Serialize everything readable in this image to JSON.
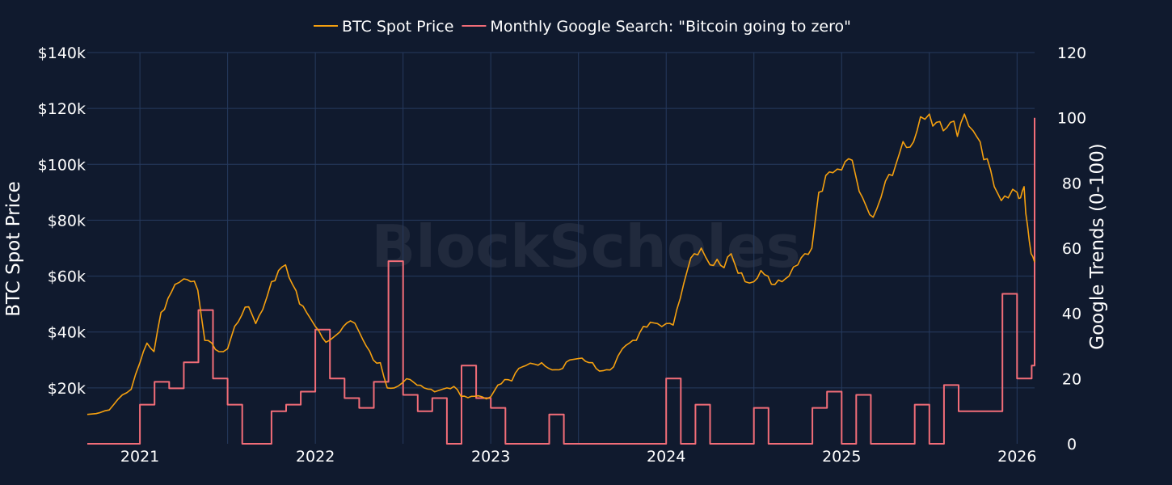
{
  "watermark": "BlockScholes",
  "chart_data": {
    "type": "line",
    "legend_position": "top-center",
    "grid": true,
    "x_axis": {
      "range": [
        2020.7,
        2026.1
      ],
      "ticks": [
        2021,
        2022,
        2023,
        2024,
        2025,
        2026
      ],
      "tick_labels": [
        "2021",
        "2022",
        "2023",
        "2024",
        "2025",
        "2026"
      ]
    },
    "y_left": {
      "title": "BTC Spot Price",
      "range": [
        0,
        140000
      ],
      "ticks": [
        20000,
        40000,
        60000,
        80000,
        100000,
        120000,
        140000
      ],
      "tick_labels": [
        "$20k",
        "$40k",
        "$60k",
        "$80k",
        "$100k",
        "$120k",
        "$140k"
      ]
    },
    "y_right": {
      "title": "Google Trends (0-100)",
      "range": [
        0,
        120
      ],
      "ticks": [
        0,
        20,
        40,
        60,
        80,
        100,
        120
      ],
      "tick_labels": [
        "0",
        "20",
        "40",
        "60",
        "80",
        "100",
        "120"
      ]
    },
    "series": [
      {
        "name": "BTC Spot Price",
        "axis": "left",
        "color": "#f5a00f",
        "x": [
          2020.7,
          2020.75,
          2020.8,
          2020.85,
          2020.9,
          2020.95,
          2021.0,
          2021.04,
          2021.08,
          2021.12,
          2021.16,
          2021.2,
          2021.25,
          2021.29,
          2021.33,
          2021.37,
          2021.41,
          2021.45,
          2021.5,
          2021.54,
          2021.58,
          2021.62,
          2021.66,
          2021.7,
          2021.75,
          2021.79,
          2021.83,
          2021.87,
          2021.91,
          2021.95,
          2022.0,
          2022.04,
          2022.08,
          2022.12,
          2022.16,
          2022.2,
          2022.25,
          2022.29,
          2022.33,
          2022.37,
          2022.41,
          2022.45,
          2022.5,
          2022.54,
          2022.58,
          2022.62,
          2022.66,
          2022.7,
          2022.75,
          2022.79,
          2022.83,
          2022.87,
          2022.91,
          2022.95,
          2023.0,
          2023.04,
          2023.08,
          2023.12,
          2023.16,
          2023.2,
          2023.25,
          2023.29,
          2023.33,
          2023.37,
          2023.41,
          2023.45,
          2023.5,
          2023.54,
          2023.58,
          2023.62,
          2023.66,
          2023.7,
          2023.75,
          2023.79,
          2023.83,
          2023.87,
          2023.91,
          2023.95,
          2024.0,
          2024.04,
          2024.08,
          2024.12,
          2024.16,
          2024.2,
          2024.25,
          2024.29,
          2024.33,
          2024.37,
          2024.41,
          2024.45,
          2024.5,
          2024.54,
          2024.58,
          2024.62,
          2024.66,
          2024.7,
          2024.75,
          2024.79,
          2024.83,
          2024.87,
          2024.91,
          2024.95,
          2025.0,
          2025.04,
          2025.08,
          2025.12,
          2025.16,
          2025.2,
          2025.25,
          2025.29,
          2025.33,
          2025.37,
          2025.41,
          2025.45,
          2025.5,
          2025.54,
          2025.58,
          2025.62,
          2025.66,
          2025.7,
          2025.75,
          2025.79,
          2025.83,
          2025.87,
          2025.91,
          2025.95,
          2026.0,
          2026.02,
          2026.04,
          2026.06,
          2026.08,
          2026.1
        ],
        "values": [
          10500,
          10800,
          11800,
          14000,
          17500,
          19500,
          29000,
          36000,
          33000,
          47000,
          52000,
          57000,
          59000,
          58000,
          55000,
          37000,
          36000,
          33000,
          34000,
          42000,
          46000,
          49000,
          43000,
          48000,
          58000,
          62000,
          64000,
          57000,
          50000,
          47000,
          42000,
          38000,
          37000,
          39000,
          42000,
          44000,
          40000,
          35000,
          30000,
          29000,
          20000,
          20000,
          22000,
          23000,
          21000,
          20000,
          19500,
          19000,
          20000,
          20500,
          17000,
          16500,
          17000,
          16800,
          16800,
          21000,
          23000,
          22500,
          27000,
          28000,
          28500,
          29000,
          27000,
          26500,
          27000,
          30000,
          30500,
          29500,
          29000,
          26000,
          26500,
          27500,
          34000,
          36000,
          37000,
          42000,
          43500,
          43000,
          43000,
          42500,
          52000,
          62000,
          68000,
          70000,
          64000,
          66000,
          63000,
          68000,
          61000,
          58000,
          58000,
          62000,
          60000,
          57000,
          58000,
          60000,
          64000,
          68000,
          70000,
          90000,
          96000,
          97000,
          98000,
          102000,
          96000,
          88000,
          82000,
          84000,
          94000,
          96000,
          104000,
          106000,
          108000,
          117000,
          118000,
          115000,
          112000,
          115000,
          110000,
          118000,
          112000,
          108000,
          102000,
          92000,
          87000,
          88000,
          90000,
          88000,
          92000,
          78000,
          68000,
          65000
        ]
      },
      {
        "name": "Monthly Google Search: \"Bitcoin going to zero\"",
        "axis": "right",
        "color": "#f26d78",
        "step": true,
        "x": [
          2020.7,
          2021.0,
          2021.08333,
          2021.16667,
          2021.25,
          2021.33333,
          2021.41667,
          2021.5,
          2021.58333,
          2021.66667,
          2021.75,
          2021.83333,
          2021.91667,
          2022.0,
          2022.08333,
          2022.16667,
          2022.25,
          2022.33333,
          2022.41667,
          2022.5,
          2022.58333,
          2022.66667,
          2022.75,
          2022.83333,
          2022.91667,
          2023.0,
          2023.08333,
          2023.16667,
          2023.25,
          2023.33333,
          2023.41667,
          2023.5,
          2023.58333,
          2023.66667,
          2023.75,
          2023.83333,
          2023.91667,
          2024.0,
          2024.08333,
          2024.16667,
          2024.25,
          2024.33333,
          2024.41667,
          2024.5,
          2024.58333,
          2024.66667,
          2024.75,
          2024.83333,
          2024.91667,
          2025.0,
          2025.08333,
          2025.16667,
          2025.25,
          2025.33333,
          2025.41667,
          2025.5,
          2025.58333,
          2025.66667,
          2025.75,
          2025.83333,
          2025.91667,
          2026.0,
          2026.08333,
          2026.1
        ],
        "values": [
          0,
          12,
          19,
          17,
          25,
          41,
          20,
          12,
          0,
          0,
          10,
          12,
          16,
          35,
          20,
          14,
          11,
          19,
          56,
          15,
          10,
          14,
          0,
          24,
          14,
          11,
          0,
          0,
          0,
          9,
          0,
          0,
          0,
          0,
          0,
          0,
          0,
          20,
          0,
          12,
          0,
          0,
          0,
          11,
          0,
          0,
          0,
          11,
          16,
          0,
          15,
          0,
          0,
          0,
          12,
          0,
          18,
          10,
          10,
          10,
          46,
          20,
          24,
          100
        ]
      }
    ]
  }
}
